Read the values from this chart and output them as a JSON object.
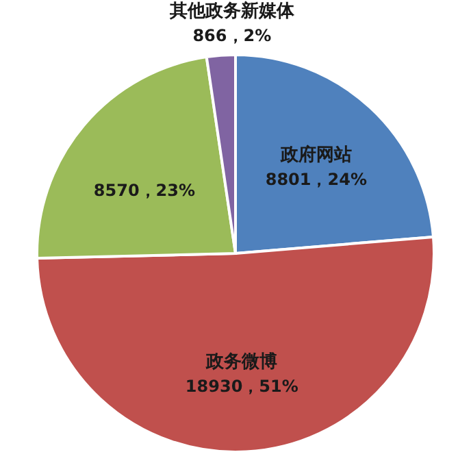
{
  "chart_data": {
    "type": "pie",
    "categories": [
      "政府网站",
      "政务微博",
      null,
      "其他政务新媒体"
    ],
    "values": [
      8801,
      18930,
      8570,
      866
    ],
    "colors": [
      "#4f81bd",
      "#c0504d",
      "#9bbb59",
      "#8064a2"
    ],
    "value_labels": [
      "8801，24%",
      "18930，51%",
      "8570，23%",
      "866，2%"
    ]
  }
}
